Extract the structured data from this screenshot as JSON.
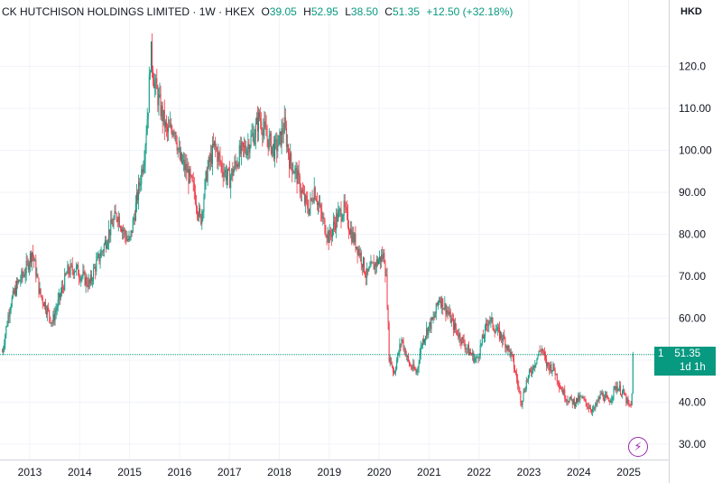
{
  "header": {
    "title": "CK HUTCHISON HOLDINGS LIMITED",
    "interval": "1W",
    "exchange": "HKEX",
    "open_label": "O",
    "open": "39.05",
    "high_label": "H",
    "high": "52.95",
    "low_label": "L",
    "low": "38.50",
    "close_label": "C",
    "close": "51.35",
    "change": "+12.50 (+32.18%)"
  },
  "currency": "HKD",
  "price_tag": {
    "symbol_index": "1",
    "price": "51.35",
    "countdown": "1d 1h"
  },
  "colors": {
    "up": "#089981",
    "down": "#f23645",
    "grid": "#f0f3fa",
    "price_line": "#089981",
    "tag": "#089981",
    "bolt": "#9c27b0"
  },
  "icons": {
    "flash": "lightning-bolt-icon"
  },
  "chart_data": {
    "type": "candlestick",
    "x_unit": "year",
    "ylim": [
      25,
      132
    ],
    "y_ticks": [
      "30.00",
      "40.00",
      "50.00",
      "60.00",
      "70.00",
      "80.00",
      "90.00",
      "100.00",
      "110.00",
      "120.0"
    ],
    "y_tick_values": [
      30,
      40,
      50,
      60,
      70,
      80,
      90,
      100,
      110,
      120
    ],
    "x_ticks": [
      "2013",
      "2014",
      "2015",
      "2016",
      "2017",
      "2018",
      "2019",
      "2020",
      "2021",
      "2022",
      "2023",
      "2024",
      "2025"
    ],
    "last_price": 51.35,
    "grid": true,
    "price_path": [
      [
        2012.45,
        52
      ],
      [
        2012.6,
        63
      ],
      [
        2012.75,
        68
      ],
      [
        2012.9,
        71
      ],
      [
        2013.05,
        76
      ],
      [
        2013.2,
        66
      ],
      [
        2013.35,
        62
      ],
      [
        2013.45,
        59
      ],
      [
        2013.6,
        65
      ],
      [
        2013.75,
        71
      ],
      [
        2013.9,
        72
      ],
      [
        2014.05,
        70
      ],
      [
        2014.2,
        68
      ],
      [
        2014.3,
        72
      ],
      [
        2014.45,
        76
      ],
      [
        2014.6,
        81
      ],
      [
        2014.75,
        85
      ],
      [
        2014.9,
        80
      ],
      [
        2015.0,
        78
      ],
      [
        2015.1,
        85
      ],
      [
        2015.2,
        92
      ],
      [
        2015.3,
        100
      ],
      [
        2015.38,
        112
      ],
      [
        2015.42,
        124
      ],
      [
        2015.5,
        116
      ],
      [
        2015.6,
        111
      ],
      [
        2015.75,
        104
      ],
      [
        2015.9,
        106
      ],
      [
        2016.0,
        98
      ],
      [
        2016.15,
        95
      ],
      [
        2016.3,
        90
      ],
      [
        2016.42,
        83
      ],
      [
        2016.55,
        95
      ],
      [
        2016.7,
        101
      ],
      [
        2016.85,
        96
      ],
      [
        2017.0,
        93
      ],
      [
        2017.2,
        99
      ],
      [
        2017.35,
        101
      ],
      [
        2017.5,
        104
      ],
      [
        2017.6,
        108
      ],
      [
        2017.75,
        103
      ],
      [
        2017.9,
        100
      ],
      [
        2018.0,
        102
      ],
      [
        2018.1,
        106
      ],
      [
        2018.2,
        98
      ],
      [
        2018.35,
        94
      ],
      [
        2018.5,
        88
      ],
      [
        2018.6,
        86
      ],
      [
        2018.7,
        91
      ],
      [
        2018.85,
        84
      ],
      [
        2019.0,
        79
      ],
      [
        2019.15,
        84
      ],
      [
        2019.3,
        86
      ],
      [
        2019.45,
        80
      ],
      [
        2019.6,
        76
      ],
      [
        2019.75,
        70
      ],
      [
        2019.85,
        72
      ],
      [
        2020.0,
        74
      ],
      [
        2020.1,
        75
      ],
      [
        2020.15,
        68
      ],
      [
        2020.2,
        51
      ],
      [
        2020.3,
        47
      ],
      [
        2020.45,
        55
      ],
      [
        2020.6,
        49
      ],
      [
        2020.75,
        47
      ],
      [
        2020.85,
        54
      ],
      [
        2020.95,
        57
      ],
      [
        2021.1,
        60
      ],
      [
        2021.2,
        65
      ],
      [
        2021.35,
        62
      ],
      [
        2021.5,
        58
      ],
      [
        2021.65,
        55
      ],
      [
        2021.8,
        52
      ],
      [
        2021.95,
        50
      ],
      [
        2022.1,
        56
      ],
      [
        2022.2,
        60
      ],
      [
        2022.35,
        57
      ],
      [
        2022.5,
        55
      ],
      [
        2022.65,
        51
      ],
      [
        2022.75,
        46
      ],
      [
        2022.85,
        40
      ],
      [
        2022.95,
        45
      ],
      [
        2023.1,
        49
      ],
      [
        2023.25,
        53
      ],
      [
        2023.35,
        49
      ],
      [
        2023.5,
        48
      ],
      [
        2023.62,
        44
      ],
      [
        2023.75,
        41
      ],
      [
        2023.9,
        40
      ],
      [
        2024.05,
        41
      ],
      [
        2024.2,
        39
      ],
      [
        2024.3,
        38
      ],
      [
        2024.45,
        42
      ],
      [
        2024.6,
        40
      ],
      [
        2024.75,
        44
      ],
      [
        2024.9,
        42
      ],
      [
        2025.0,
        39
      ],
      [
        2025.05,
        39
      ],
      [
        2025.1,
        51.35
      ]
    ]
  }
}
